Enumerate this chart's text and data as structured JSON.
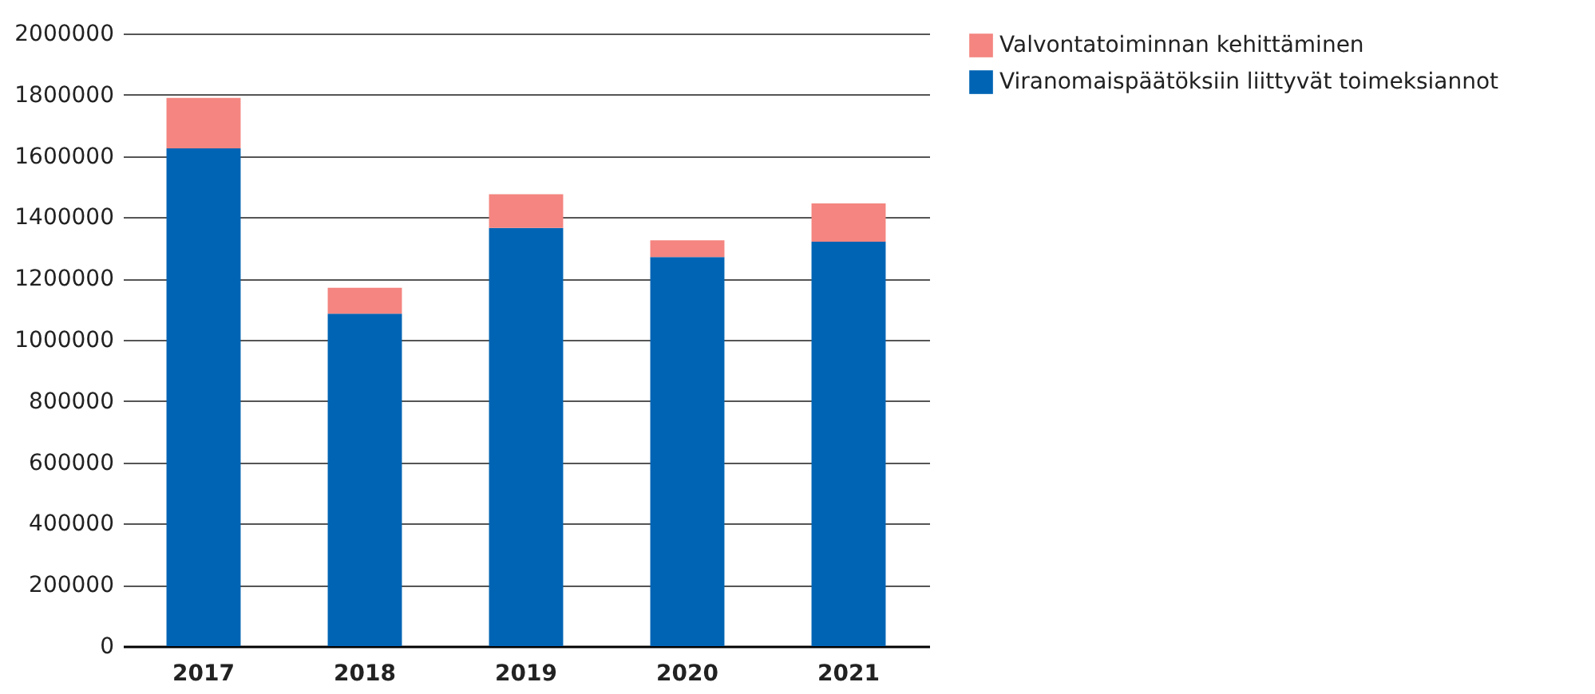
{
  "chart_data": {
    "type": "bar",
    "stacked": true,
    "categories": [
      "2017",
      "2018",
      "2019",
      "2020",
      "2021"
    ],
    "series": [
      {
        "name": "Viranomaispäätöksiin liittyvät toimeksiannot",
        "color": "#0064b4",
        "values": [
          1625000,
          1085000,
          1365000,
          1270000,
          1320000
        ]
      },
      {
        "name": "Valvontatoiminnan kehittäminen",
        "color": "#f48580",
        "values": [
          165000,
          85000,
          110000,
          55000,
          125000
        ]
      }
    ],
    "ylim": [
      0,
      2000000
    ],
    "yticks": [
      0,
      200000,
      400000,
      600000,
      800000,
      1000000,
      1200000,
      1400000,
      1600000,
      1800000,
      2000000
    ],
    "grid": "y",
    "legend": "right"
  }
}
